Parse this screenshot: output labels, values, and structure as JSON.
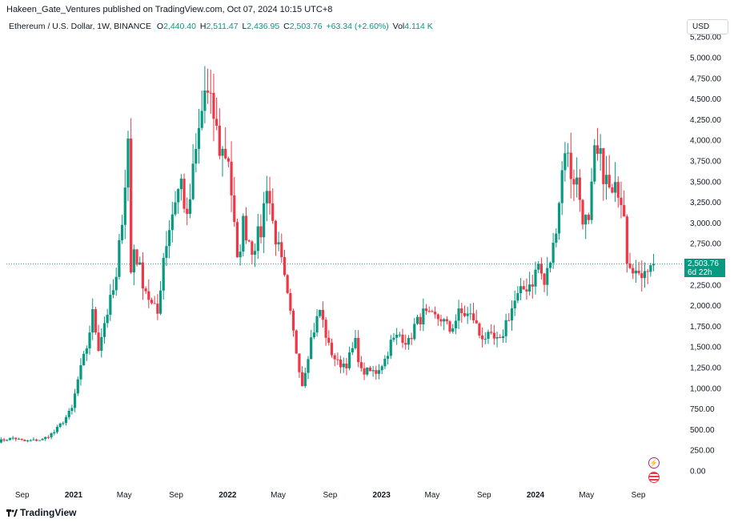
{
  "header": {
    "published_by": "Hakeen_Gate_Ventures published on TradingView.com, Oct 07, 2024 10:15 UTC+8"
  },
  "legend": {
    "symbol": "Ethereum / U.S. Dollar, 1W, BINANCE",
    "open_label": "O",
    "open": "2,440.40",
    "high_label": "H",
    "high": "2,511.47",
    "low_label": "L",
    "low": "2,436.95",
    "close_label": "C",
    "close": "2,503.76",
    "change": "+63.34 (+2.60%)",
    "vol_label": "Vol",
    "vol": "4.114 K"
  },
  "price_axis": {
    "currency": "USD"
  },
  "last_price": {
    "value": "2,503.76",
    "countdown": "6d 22h"
  },
  "brand": {
    "name": "TradingView"
  },
  "colors": {
    "up": "#089981",
    "down": "#f23645",
    "grid_line": "#26a69a"
  },
  "chart_data": {
    "type": "candlestick",
    "interval": "1W",
    "y_ticks": [
      0,
      250,
      500,
      750,
      1000,
      1250,
      1500,
      1750,
      2000,
      2250,
      2500,
      2750,
      3000,
      3250,
      3500,
      3750,
      4000,
      4250,
      4500,
      4750,
      5000,
      5250
    ],
    "y_tick_labels": [
      "0.00",
      "250.00",
      "500.00",
      "750.00",
      "1,000.00",
      "1,250.00",
      "1,500.00",
      "1,750.00",
      "2,000.00",
      "2,250.00",
      "2,500.00",
      "2,750.00",
      "3,000.00",
      "3,250.00",
      "3,500.00",
      "3,750.00",
      "4,000.00",
      "4,250.00",
      "4,500.00",
      "4,750.00",
      "5,000.00",
      "5,250.00"
    ],
    "ylim": [
      0,
      5300
    ],
    "x_ticks": [
      {
        "label": "Sep",
        "date": "2020-09-01",
        "bold": false
      },
      {
        "label": "2021",
        "date": "2021-01-01",
        "bold": true
      },
      {
        "label": "May",
        "date": "2021-05-01",
        "bold": false
      },
      {
        "label": "Sep",
        "date": "2021-09-01",
        "bold": false
      },
      {
        "label": "2022",
        "date": "2022-01-01",
        "bold": true
      },
      {
        "label": "May",
        "date": "2022-05-01",
        "bold": false
      },
      {
        "label": "Sep",
        "date": "2022-09-01",
        "bold": false
      },
      {
        "label": "2023",
        "date": "2023-01-01",
        "bold": true
      },
      {
        "label": "May",
        "date": "2023-05-01",
        "bold": false
      },
      {
        "label": "Sep",
        "date": "2023-09-01",
        "bold": false
      },
      {
        "label": "2024",
        "date": "2024-01-01",
        "bold": true
      },
      {
        "label": "May",
        "date": "2024-05-01",
        "bold": false
      },
      {
        "label": "Sep",
        "date": "2024-09-01",
        "bold": false
      }
    ],
    "last_price_line": 2503.76,
    "anchors": [
      [
        "2020-07-06",
        360
      ],
      [
        "2020-08-10",
        400
      ],
      [
        "2020-09-07",
        360
      ],
      [
        "2020-10-19",
        380
      ],
      [
        "2020-11-16",
        470
      ],
      [
        "2020-12-07",
        600
      ],
      [
        "2020-12-28",
        750
      ],
      [
        "2021-01-11",
        1100
      ],
      [
        "2021-02-01",
        1500
      ],
      [
        "2021-02-15",
        1900
      ],
      [
        "2021-03-01",
        1500
      ],
      [
        "2021-03-15",
        1800
      ],
      [
        "2021-04-12",
        2300
      ],
      [
        "2021-05-03",
        3500
      ],
      [
        "2021-05-10",
        4000
      ],
      [
        "2021-05-17",
        2400
      ],
      [
        "2021-05-24",
        2700
      ],
      [
        "2021-06-14",
        2300
      ],
      [
        "2021-07-05",
        2000
      ],
      [
        "2021-07-19",
        1900
      ],
      [
        "2021-08-02",
        2600
      ],
      [
        "2021-08-30",
        3300
      ],
      [
        "2021-09-13",
        3500
      ],
      [
        "2021-09-27",
        3000
      ],
      [
        "2021-10-11",
        3600
      ],
      [
        "2021-11-08",
        4600
      ],
      [
        "2021-11-29",
        4300
      ],
      [
        "2021-12-13",
        3900
      ],
      [
        "2022-01-03",
        3800
      ],
      [
        "2022-01-24",
        2500
      ],
      [
        "2022-02-07",
        3000
      ],
      [
        "2022-02-28",
        2700
      ],
      [
        "2022-03-21",
        2900
      ],
      [
        "2022-04-04",
        3500
      ],
      [
        "2022-04-18",
        3000
      ],
      [
        "2022-05-09",
        2500
      ],
      [
        "2022-06-13",
        1450
      ],
      [
        "2022-06-27",
        1050
      ],
      [
        "2022-07-18",
        1600
      ],
      [
        "2022-08-08",
        1950
      ],
      [
        "2022-08-29",
        1500
      ],
      [
        "2022-09-19",
        1300
      ],
      [
        "2022-10-10",
        1300
      ],
      [
        "2022-10-31",
        1550
      ],
      [
        "2022-11-14",
        1200
      ],
      [
        "2022-12-19",
        1200
      ],
      [
        "2023-01-09",
        1350
      ],
      [
        "2023-01-23",
        1550
      ],
      [
        "2023-02-13",
        1650
      ],
      [
        "2023-03-06",
        1550
      ],
      [
        "2023-03-20",
        1750
      ],
      [
        "2023-04-10",
        1900
      ],
      [
        "2023-04-24",
        1850
      ],
      [
        "2023-05-22",
        1850
      ],
      [
        "2023-06-12",
        1700
      ],
      [
        "2023-07-03",
        1900
      ],
      [
        "2023-07-17",
        1900
      ],
      [
        "2023-08-07",
        1850
      ],
      [
        "2023-08-21",
        1650
      ],
      [
        "2023-09-18",
        1600
      ],
      [
        "2023-10-09",
        1550
      ],
      [
        "2023-10-23",
        1800
      ],
      [
        "2023-11-13",
        2050
      ],
      [
        "2023-12-04",
        2200
      ],
      [
        "2023-12-25",
        2300
      ],
      [
        "2024-01-08",
        2500
      ],
      [
        "2024-01-22",
        2250
      ],
      [
        "2024-02-12",
        2700
      ],
      [
        "2024-02-26",
        3300
      ],
      [
        "2024-03-11",
        3950
      ],
      [
        "2024-03-25",
        3600
      ],
      [
        "2024-04-08",
        3500
      ],
      [
        "2024-04-22",
        3100
      ],
      [
        "2024-05-06",
        2950
      ],
      [
        "2024-05-20",
        3800
      ],
      [
        "2024-06-03",
        3750
      ],
      [
        "2024-06-17",
        3500
      ],
      [
        "2024-07-01",
        3300
      ],
      [
        "2024-07-15",
        3450
      ],
      [
        "2024-07-29",
        3200
      ],
      [
        "2024-08-05",
        2600
      ],
      [
        "2024-08-19",
        2500
      ],
      [
        "2024-09-02",
        2300
      ],
      [
        "2024-09-16",
        2500
      ],
      [
        "2024-09-30",
        2450
      ],
      [
        "2024-10-07",
        2503.76
      ]
    ]
  }
}
